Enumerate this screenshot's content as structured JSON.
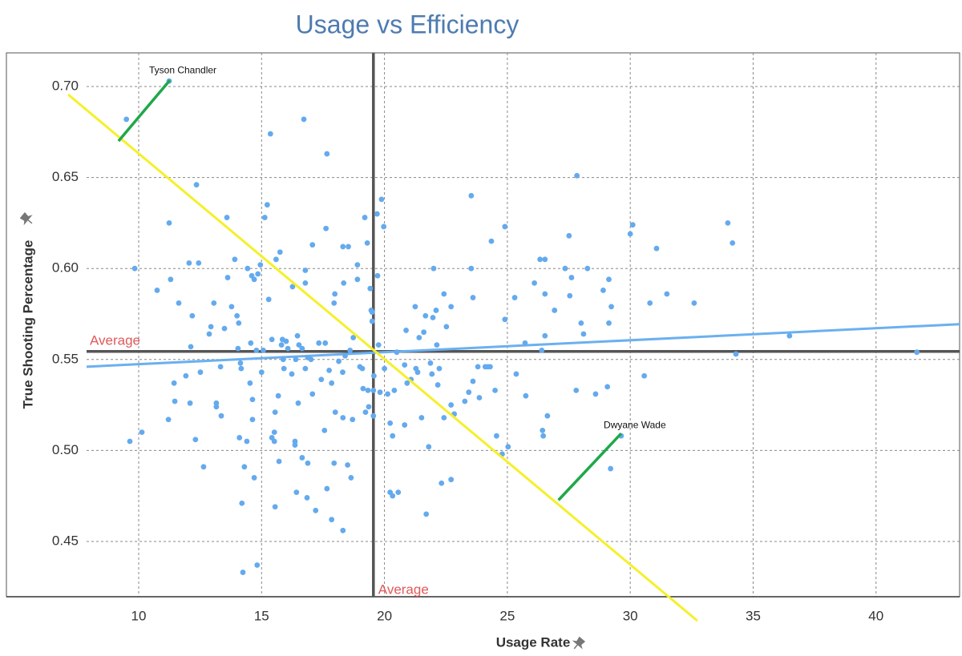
{
  "chart_data": {
    "type": "scatter",
    "title": "Usage vs Efficiency",
    "x_label": "Usage Rate",
    "y_label": "True Shooting Percentage",
    "xlim": [
      7.88,
      43.4
    ],
    "ylim": [
      0.4196,
      0.7185
    ],
    "xticks": [
      10,
      15,
      20,
      25,
      30,
      35,
      40
    ],
    "yticks": [
      0.45,
      {
        "value": 0.5,
        "label": "0.50"
      },
      0.55,
      {
        "value": 0.6,
        "label": "0.60"
      },
      0.65,
      {
        "value": 0.7,
        "label": "0.70"
      }
    ],
    "grid": true,
    "color": "#64aaee",
    "average_x": {
      "value": 19.55,
      "label": "Average"
    },
    "average_y": {
      "value": 0.5544,
      "label": "Average"
    },
    "trend_line": {
      "color": "#6bb0f0",
      "x": [
        7.88,
        43.4
      ],
      "y": [
        0.546,
        0.5694
      ]
    },
    "diagonal_line": {
      "color": "#f5f02a",
      "x": [
        7.13,
        32.73
      ],
      "y": [
        0.6956,
        0.4064
      ]
    },
    "annotations": [
      {
        "text": "Tyson Chandler",
        "x": 11.24,
        "y": 0.703,
        "leader": {
          "color": "#1fa84a",
          "x": [
            9.18,
            11.27
          ],
          "y": [
            0.67,
            0.7035
          ]
        }
      },
      {
        "text": "Dwyane Wade",
        "x": 29.63,
        "y": 0.508,
        "leader": {
          "color": "#1fa84a",
          "x": [
            27.08,
            29.63
          ],
          "y": [
            0.4727,
            0.5093
          ]
        }
      }
    ],
    "x": [
      9.5,
      11.24,
      9.84,
      9.64,
      10.13,
      10.75,
      11.24,
      11.3,
      11.21,
      11.47,
      11.44,
      11.63,
      11.92,
      12.09,
      12.05,
      12.44,
      12.18,
      12.12,
      12.35,
      12.31,
      12.64,
      12.51,
      12.87,
      12.94,
      13.06,
      13.16,
      13.16,
      13.36,
      13.33,
      13.59,
      13.62,
      13.49,
      13.78,
      13.91,
      14.0,
      14.07,
      14.04,
      14.14,
      14.17,
      14.1,
      14.2,
      14.3,
      14.24,
      14.4,
      14.43,
      14.53,
      14.56,
      14.6,
      14.7,
      14.7,
      14.63,
      14.63,
      14.79,
      14.82,
      14.85,
      14.95,
      15.0,
      15.07,
      15.13,
      15.23,
      15.29,
      15.36,
      15.42,
      15.42,
      15.52,
      15.55,
      15.55,
      15.52,
      15.59,
      15.68,
      15.71,
      15.75,
      15.81,
      15.85,
      15.88,
      15.91,
      16.0,
      16.07,
      16.23,
      16.26,
      16.36,
      16.36,
      16.42,
      16.39,
      16.46,
      16.49,
      16.52,
      16.65,
      16.65,
      16.72,
      16.78,
      16.78,
      16.78,
      16.85,
      16.88,
      16.88,
      17.01,
      17.07,
      17.07,
      17.2,
      17.33,
      17.43,
      17.56,
      17.59,
      17.62,
      17.66,
      17.66,
      17.75,
      17.85,
      17.85,
      17.95,
      17.95,
      17.98,
      18.0,
      18.14,
      18.3,
      18.31,
      18.31,
      18.34,
      18.31,
      18.4,
      18.5,
      18.53,
      18.6,
      18.64,
      18.7,
      18.73,
      18.9,
      18.9,
      19.0,
      19.1,
      19.13,
      19.2,
      19.23,
      19.3,
      19.33,
      19.36,
      19.42,
      19.46,
      19.5,
      19.5,
      19.55,
      19.57,
      19.55,
      19.7,
      19.72,
      19.76,
      19.82,
      19.88,
      19.97,
      20.0,
      20.13,
      20.23,
      20.23,
      20.33,
      20.33,
      20.4,
      20.5,
      20.56,
      20.82,
      20.82,
      20.88,
      20.92,
      21.08,
      21.25,
      21.28,
      21.35,
      21.41,
      21.51,
      21.6,
      21.67,
      21.7,
      21.8,
      21.87,
      21.93,
      21.97,
      22.0,
      22.1,
      22.13,
      22.17,
      22.23,
      22.32,
      22.42,
      22.42,
      22.52,
      22.71,
      22.71,
      22.71,
      22.84,
      23.27,
      23.43,
      23.53,
      23.6,
      23.53,
      23.6,
      23.8,
      23.86,
      24.1,
      24.2,
      24.3,
      24.35,
      24.5,
      24.56,
      24.79,
      24.9,
      25.03,
      24.9,
      25.36,
      25.3,
      25.72,
      25.75,
      26.1,
      26.33,
      26.53,
      26.46,
      26.53,
      26.4,
      26.43,
      26.63,
      26.53,
      26.92,
      27.35,
      27.51,
      27.54,
      27.61,
      27.8,
      27.83,
      28.0,
      28.1,
      28.26,
      28.59,
      28.9,
      29.07,
      29.13,
      29.23,
      29.13,
      29.2,
      29.63,
      30.0,
      30.1,
      30.57,
      30.8,
      31.07,
      31.49,
      32.6,
      33.97,
      34.16,
      34.3,
      36.48,
      41.66
    ],
    "y": [
      0.682,
      0.703,
      0.6,
      0.505,
      0.51,
      0.588,
      0.625,
      0.594,
      0.517,
      0.527,
      0.537,
      0.581,
      0.541,
      0.526,
      0.603,
      0.603,
      0.574,
      0.557,
      0.646,
      0.506,
      0.491,
      0.543,
      0.564,
      0.568,
      0.581,
      0.526,
      0.524,
      0.519,
      0.546,
      0.628,
      0.595,
      0.567,
      0.579,
      0.605,
      0.574,
      0.57,
      0.556,
      0.548,
      0.545,
      0.507,
      0.471,
      0.491,
      0.433,
      0.505,
      0.6,
      0.537,
      0.559,
      0.596,
      0.485,
      0.594,
      0.528,
      0.517,
      0.555,
      0.437,
      0.597,
      0.602,
      0.543,
      0.555,
      0.628,
      0.635,
      0.583,
      0.674,
      0.561,
      0.507,
      0.505,
      0.521,
      0.469,
      0.51,
      0.605,
      0.53,
      0.494,
      0.609,
      0.558,
      0.561,
      0.55,
      0.545,
      0.56,
      0.556,
      0.542,
      0.59,
      0.505,
      0.503,
      0.477,
      0.55,
      0.563,
      0.526,
      0.558,
      0.556,
      0.496,
      0.682,
      0.592,
      0.599,
      0.545,
      0.474,
      0.493,
      0.551,
      0.55,
      0.613,
      0.531,
      0.467,
      0.559,
      0.539,
      0.511,
      0.559,
      0.622,
      0.479,
      0.663,
      0.544,
      0.537,
      0.462,
      0.581,
      0.493,
      0.586,
      0.521,
      0.549,
      0.543,
      0.612,
      0.456,
      0.592,
      0.518,
      0.552,
      0.492,
      0.612,
      0.555,
      0.485,
      0.517,
      0.562,
      0.602,
      0.594,
      0.546,
      0.545,
      0.534,
      0.628,
      0.521,
      0.614,
      0.533,
      0.524,
      0.589,
      0.577,
      0.576,
      0.571,
      0.533,
      0.541,
      0.519,
      0.63,
      0.596,
      0.558,
      0.532,
      0.638,
      0.623,
      0.545,
      0.531,
      0.515,
      0.477,
      0.508,
      0.475,
      0.533,
      0.554,
      0.477,
      0.547,
      0.514,
      0.566,
      0.537,
      0.539,
      0.579,
      0.545,
      0.543,
      0.562,
      0.518,
      0.565,
      0.574,
      0.465,
      0.502,
      0.548,
      0.542,
      0.573,
      0.6,
      0.577,
      0.558,
      0.536,
      0.545,
      0.482,
      0.586,
      0.518,
      0.568,
      0.579,
      0.525,
      0.484,
      0.52,
      0.527,
      0.532,
      0.64,
      0.584,
      0.6,
      0.538,
      0.546,
      0.529,
      0.546,
      0.546,
      0.546,
      0.615,
      0.533,
      0.508,
      0.498,
      0.623,
      0.502,
      0.572,
      0.542,
      0.584,
      0.559,
      0.53,
      0.592,
      0.605,
      0.605,
      0.508,
      0.563,
      0.555,
      0.511,
      0.519,
      0.586,
      0.577,
      0.6,
      0.618,
      0.585,
      0.595,
      0.533,
      0.651,
      0.57,
      0.564,
      0.6,
      0.531,
      0.588,
      0.535,
      0.594,
      0.579,
      0.57,
      0.49,
      0.508,
      0.619,
      0.624,
      0.541,
      0.581,
      0.611,
      0.586,
      0.581,
      0.625,
      0.614,
      0.553,
      0.563,
      0.554
    ]
  }
}
